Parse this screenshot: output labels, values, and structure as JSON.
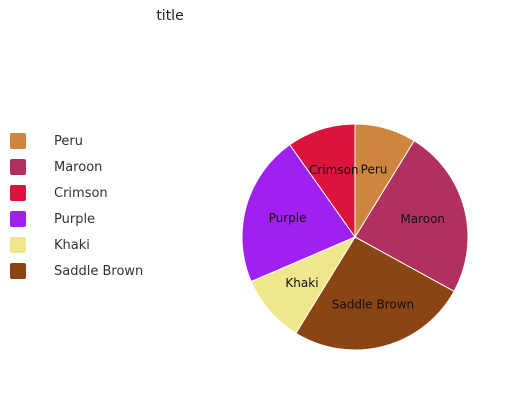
{
  "chart_data": {
    "type": "pie",
    "title": "title",
    "legend_position": "left",
    "categories": [
      "Peru",
      "Maroon",
      "Crimson",
      "Purple",
      "Khaki",
      "Saddle Brown"
    ],
    "values": [
      8.5,
      23.5,
      9.5,
      21,
      9.5,
      25
    ],
    "colors": [
      "#cd853f",
      "#b03060",
      "#dc143c",
      "#a020f0",
      "#f0e68c",
      "#8b4513"
    ],
    "slice_labels": [
      "Peru",
      "Maroon",
      "Crimson",
      "Purple",
      "Khaki",
      "Saddle Brown"
    ]
  }
}
